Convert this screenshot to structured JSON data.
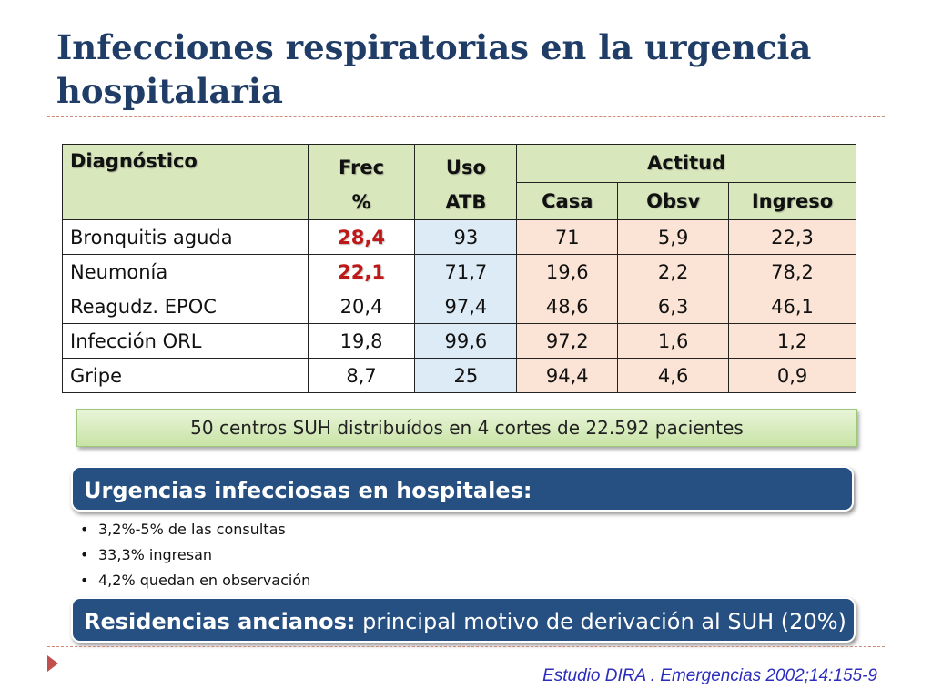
{
  "title": "Infecciones respiratorias en la urgencia hospitalaria",
  "table": {
    "headers": {
      "diagnostico": "Diagnóstico",
      "frec_line1": "Frec",
      "frec_line2": "%",
      "atb_line1": "Uso",
      "atb_line2": "ATB",
      "actitud": "Actitud",
      "casa": "Casa",
      "obsv": "Obsv",
      "ingreso": "Ingreso"
    },
    "rows": [
      {
        "diagnostico": "Bronquitis aguda",
        "frec": "28,4",
        "atb": "93",
        "casa": "71",
        "obsv": "5,9",
        "ingreso": "22,3",
        "highlight": true
      },
      {
        "diagnostico": "Neumonía",
        "frec": "22,1",
        "atb": "71,7",
        "casa": "19,6",
        "obsv": "2,2",
        "ingreso": "78,2",
        "highlight": true
      },
      {
        "diagnostico": "Reagudz. EPOC",
        "frec": "20,4",
        "atb": "97,4",
        "casa": "48,6",
        "obsv": "6,3",
        "ingreso": "46,1",
        "highlight": false
      },
      {
        "diagnostico": "Infección ORL",
        "frec": "19,8",
        "atb": "99,6",
        "casa": "97,2",
        "obsv": "1,6",
        "ingreso": "1,2",
        "highlight": false
      },
      {
        "diagnostico": "Gripe",
        "frec": "8,7",
        "atb": "25",
        "casa": "94,4",
        "obsv": "4,6",
        "ingreso": "0,9",
        "highlight": false
      }
    ]
  },
  "note": "50 centros SUH distribuídos en 4 cortes de 22.592 pacientes",
  "banner1": "Urgencias infecciosas en hospitales:",
  "bullets": [
    "3,2%-5% de las consultas",
    "33,3% ingresan",
    "4,2% quedan en observación"
  ],
  "banner2": {
    "bold": "Residencias ancianos:",
    "rest": " principal motivo de derivación al SUH (20%)"
  },
  "citation": "Estudio DIRA . Emergencias 2002;14:155-9",
  "colors": {
    "title": "#1f3d66",
    "header_bg": "#d9e7bd",
    "atb_bg": "#dcebf5",
    "actitud_bg": "#fbe4d6",
    "highlight_text": "#c01818",
    "banner_bg": "#264f82",
    "citation": "#2d2dbd"
  }
}
